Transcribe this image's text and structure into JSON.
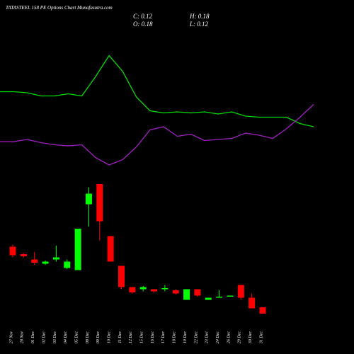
{
  "chart_data": {
    "type": "candlestick",
    "title": "TATASTEEL 158 PE Options Chart Munafasutra.com",
    "summary": [
      "C: 0.12",
      "H: 0.18",
      "O: 0.18",
      "L: 0.12"
    ],
    "categories": [
      "27 Nov",
      "28 Nov",
      "01 Dec",
      "02 Dec",
      "03 Dec",
      "04 Dec",
      "05 Dec",
      "08 Dec",
      "09 Dec",
      "10 Dec",
      "11 Dec",
      "12 Dec",
      "15 Dec",
      "16 Dec",
      "17 Dec",
      "18 Dec",
      "19 Dec",
      "22 Dec",
      "23 Dec",
      "24 Dec",
      "26 Dec",
      "29 Dec",
      "30 Dec",
      "31 Dec"
    ],
    "open": [
      0.75,
      0.68,
      0.63,
      0.59,
      0.63,
      0.55,
      0.53,
      1.15,
      1.34,
      0.85,
      0.57,
      0.37,
      0.35,
      0.35,
      0.35,
      0.34,
      0.25,
      0.35,
      0.25,
      0.27,
      0.28,
      0.39,
      0.27,
      0.18
    ],
    "high": [
      0.77,
      0.69,
      0.7,
      0.62,
      0.76,
      0.63,
      0.92,
      1.31,
      1.34,
      0.85,
      0.57,
      0.37,
      0.38,
      0.35,
      0.39,
      0.35,
      0.35,
      0.35,
      0.27,
      0.34,
      0.29,
      0.39,
      0.31,
      0.18
    ],
    "low": [
      0.65,
      0.65,
      0.58,
      0.58,
      0.61,
      0.54,
      0.53,
      0.94,
      0.81,
      0.61,
      0.35,
      0.31,
      0.33,
      0.32,
      0.33,
      0.3,
      0.25,
      0.28,
      0.25,
      0.27,
      0.28,
      0.25,
      0.17,
      0.12
    ],
    "close": [
      0.67,
      0.66,
      0.6,
      0.61,
      0.65,
      0.61,
      0.92,
      1.25,
      0.99,
      0.61,
      0.37,
      0.32,
      0.37,
      0.33,
      0.36,
      0.31,
      0.35,
      0.29,
      0.27,
      0.28,
      0.29,
      0.27,
      0.17,
      0.12
    ],
    "up_color": "#00ff00",
    "down_color": "#ff0000",
    "lines": [
      {
        "color": "#00dd00",
        "values": [
          2.21,
          2.21,
          2.2,
          2.17,
          2.17,
          2.19,
          2.17,
          2.35,
          2.55,
          2.4,
          2.16,
          2.03,
          2.01,
          2.02,
          2.01,
          2.02,
          2.0,
          2.02,
          1.98,
          1.97,
          1.97,
          1.97,
          1.91,
          1.88
        ]
      },
      {
        "color": "#a020c0",
        "values": [
          1.74,
          1.74,
          1.76,
          1.73,
          1.71,
          1.7,
          1.71,
          1.59,
          1.52,
          1.57,
          1.69,
          1.85,
          1.88,
          1.79,
          1.81,
          1.75,
          1.76,
          1.77,
          1.82,
          1.8,
          1.77,
          1.86,
          1.97,
          2.09
        ]
      }
    ],
    "ylim": [
      0,
      3
    ]
  }
}
